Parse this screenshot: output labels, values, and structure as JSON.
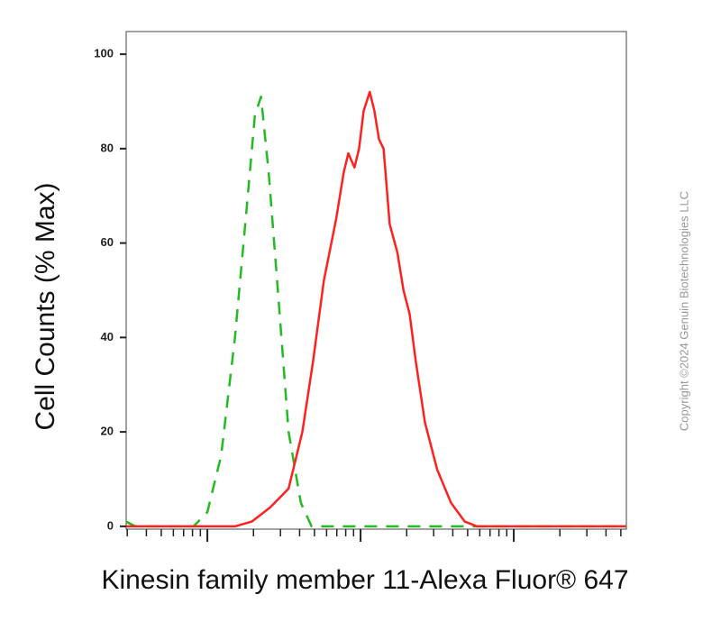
{
  "chart_data": {
    "type": "line",
    "y_label": "Cell Counts (% Max)",
    "x_label": "Kinesin family member 11-Alexa Fluor® 647",
    "copyright": "Copyright ©2024 Genuin Biotechnologies LLC",
    "xlim": [
      0.47,
      3.735
    ],
    "xticks": [
      1,
      2,
      3
    ],
    "ylim": [
      -0.6,
      104.8
    ],
    "yticks": [
      0,
      20,
      40,
      60,
      80,
      100
    ],
    "series": [
      {
        "color": "#22bb22",
        "dash": true,
        "x": [
          0.47,
          0.53,
          0.91,
          1.0,
          1.09,
          1.18,
          1.25,
          1.31,
          1.35,
          1.4,
          1.46,
          1.53,
          1.61,
          1.68,
          3.73
        ],
        "values": [
          1,
          0,
          0,
          3,
          15,
          40,
          65,
          87,
          91,
          75,
          50,
          20,
          5,
          0,
          0
        ]
      },
      {
        "color": "#ff2020",
        "dash": false,
        "x": [
          0.47,
          1.18,
          1.29,
          1.41,
          1.53,
          1.62,
          1.69,
          1.76,
          1.84,
          1.89,
          1.92,
          1.96,
          1.99,
          2.02,
          2.06,
          2.09,
          2.12,
          2.15,
          2.19,
          2.24,
          2.28,
          2.32,
          2.36,
          2.42,
          2.5,
          2.59,
          2.68,
          2.76,
          3.73
        ],
        "values": [
          0,
          0,
          1,
          4,
          8,
          20,
          35,
          52,
          65,
          75,
          79,
          76,
          80,
          88,
          92,
          88,
          82,
          80,
          64,
          58,
          50,
          45,
          35,
          22,
          12,
          5,
          1,
          0,
          0
        ]
      }
    ]
  }
}
